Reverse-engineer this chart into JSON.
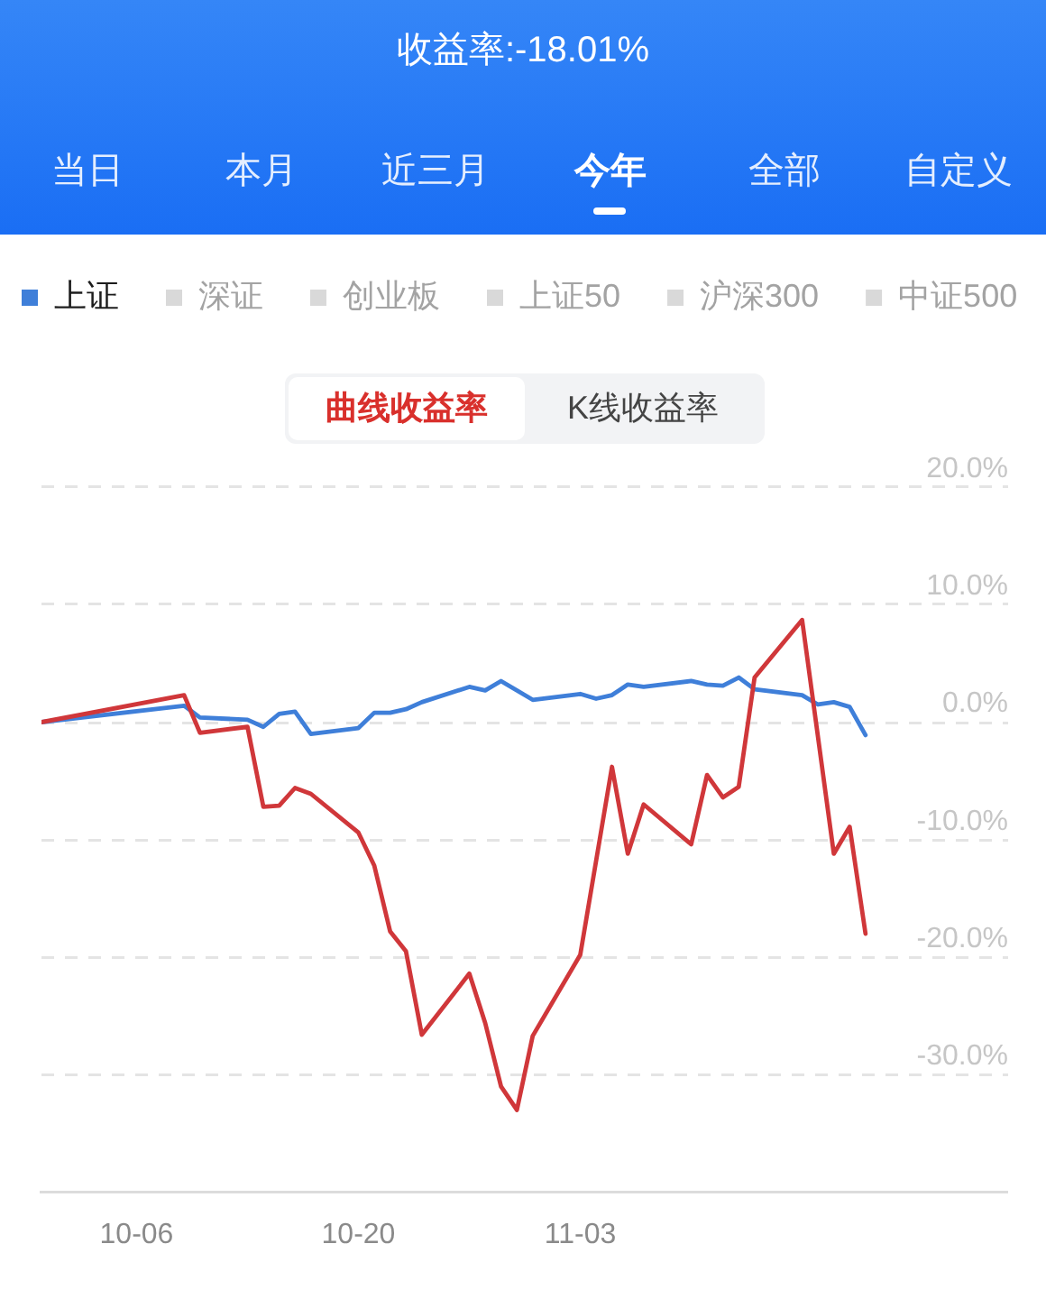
{
  "chart_data": {
    "type": "line",
    "title": "收益率:-18.01%",
    "annotations": [
      "当日",
      "本月",
      "近三月",
      "今年",
      "全部",
      "自定义",
      "曲线收益率",
      "K线收益率"
    ],
    "series": [
      {
        "color": "#d0373a",
        "x": [
          "--09-30",
          "--10-09",
          "--10-10",
          "--10-13",
          "--10-14",
          "--10-15",
          "--10-16",
          "--10-17",
          "--10-20",
          "--10-21",
          "--10-22",
          "--10-23",
          "--10-24",
          "--10-27",
          "--10-28",
          "--10-29",
          "--10-30",
          "--10-31",
          "--11-03",
          "--11-05",
          "--11-06",
          "--11-07",
          "--11-10",
          "--11-11",
          "--11-12",
          "--11-13",
          "--11-14",
          "--11-17",
          "--11-19",
          "--11-20",
          "--11-21"
        ],
        "values": [
          0,
          2.3,
          -0.9,
          -0.4,
          -7.2,
          -7.1,
          -5.6,
          -6.1,
          -9.4,
          -12.2,
          -17.8,
          -19.5,
          -26.6,
          -21.4,
          -25.6,
          -31.0,
          -33.0,
          -26.7,
          -19.8,
          -3.8,
          -11.2,
          -7.0,
          -10.4,
          -4.5,
          -6.4,
          -5.5,
          3.8,
          8.7,
          -11.2,
          -8.9,
          -18.0
        ]
      },
      {
        "name": "上证",
        "color": "#3f7fd9",
        "x": [
          "--09-30",
          "--10-09",
          "--10-10",
          "--10-13",
          "--10-14",
          "--10-15",
          "--10-16",
          "--10-17",
          "--10-20",
          "--10-21",
          "--10-22",
          "--10-23",
          "--10-24",
          "--10-27",
          "--10-28",
          "--10-29",
          "--10-31",
          "--11-03",
          "--11-04",
          "--11-05",
          "--11-06",
          "--11-07",
          "--11-10",
          "--11-11",
          "--11-12",
          "--11-13",
          "--11-14",
          "--11-17",
          "--11-18",
          "--11-19",
          "--11-20",
          "--11-21"
        ],
        "values": [
          0,
          1.4,
          0.4,
          0.2,
          -0.4,
          0.7,
          0.9,
          -1.0,
          -0.5,
          0.8,
          0.8,
          1.1,
          1.7,
          3.0,
          2.7,
          3.5,
          1.9,
          2.4,
          2.0,
          2.3,
          3.2,
          3.0,
          3.5,
          3.2,
          3.1,
          3.8,
          2.8,
          2.3,
          1.5,
          1.7,
          1.3,
          -1.1
        ]
      },
      {
        "name": "深证",
        "color": "#d9d9d9"
      },
      {
        "name": "创业板",
        "color": "#d9d9d9"
      },
      {
        "name": "上证50",
        "color": "#d9d9d9"
      },
      {
        "name": "沪深300",
        "color": "#d9d9d9"
      },
      {
        "name": "中证500",
        "color": "#d9d9d9"
      }
    ],
    "xlim": [
      "--09-30",
      "--11-30"
    ],
    "xticks": [
      {
        "value": "--10-06",
        "label": "10-06"
      },
      {
        "value": "--10-20",
        "label": "10-20"
      },
      {
        "value": "--11-03",
        "label": "11-03"
      }
    ],
    "ylim": [
      -40,
      20
    ],
    "yticks": [
      {
        "value": -30,
        "label": "-30.0%"
      },
      {
        "value": -20,
        "label": "-20.0%"
      },
      {
        "value": -10,
        "label": "-10.0%"
      },
      {
        "value": 0,
        "label": "0.0%"
      },
      {
        "value": 10,
        "label": "10.0%"
      },
      {
        "value": 20,
        "label": "20.0%"
      }
    ],
    "grid": "y",
    "legend": "top left"
  }
}
